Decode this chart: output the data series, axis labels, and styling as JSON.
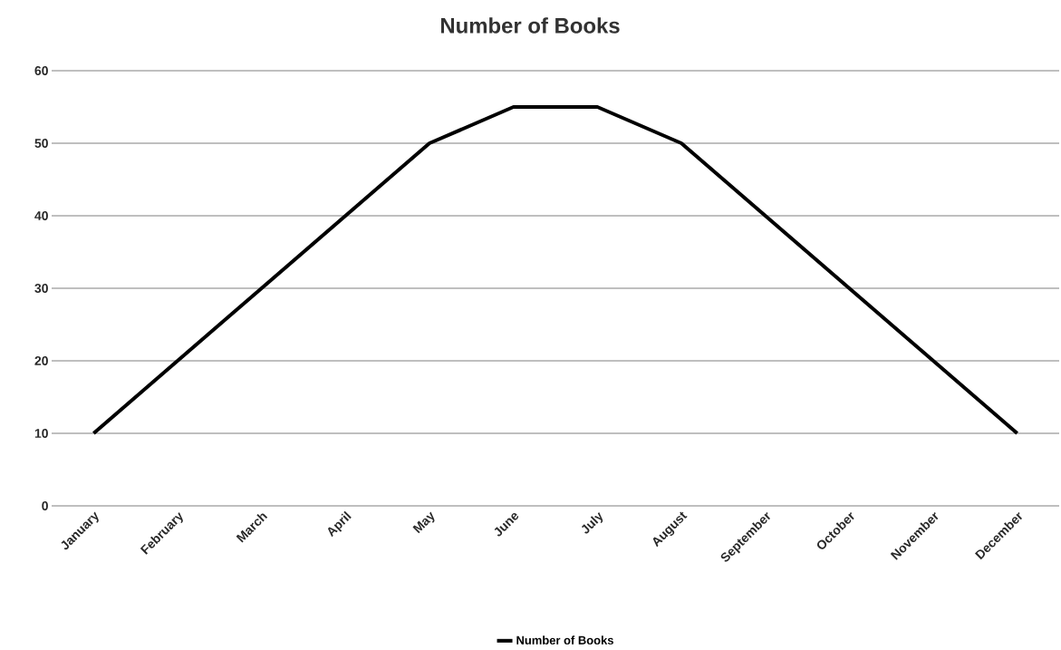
{
  "chart_data": {
    "type": "line",
    "title": "Number of Books",
    "categories": [
      "January",
      "February",
      "March",
      "April",
      "May",
      "June",
      "July",
      "August",
      "September",
      "October",
      "November",
      "December"
    ],
    "series": [
      {
        "name": "Number of Books",
        "color": "#000000",
        "values": [
          10,
          20,
          30,
          40,
          50,
          55,
          55,
          50,
          40,
          30,
          20,
          10
        ]
      }
    ],
    "ylim": [
      0,
      60
    ],
    "yticks": [
      0,
      10,
      20,
      30,
      40,
      50,
      60
    ],
    "grid": "y",
    "legend": "bottom"
  }
}
